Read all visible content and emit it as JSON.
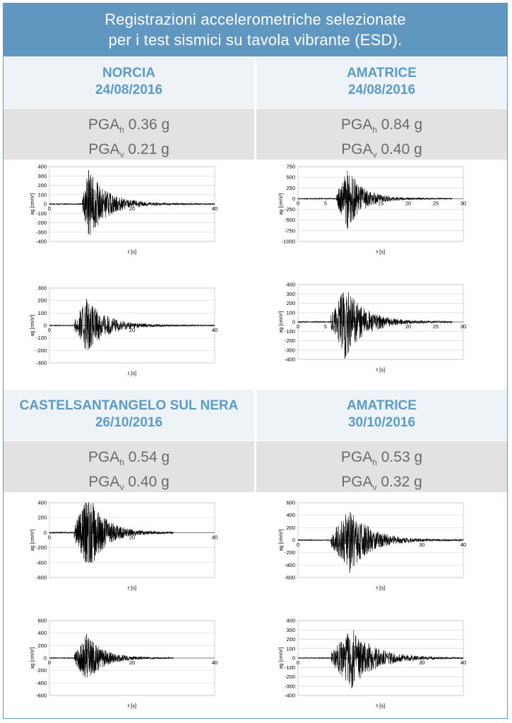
{
  "title": {
    "line1": "Registrazioni accelerometriche selezionate",
    "line2": "per i test sismici su tavola vibrante (ESD)."
  },
  "panels": [
    {
      "name": "NORCIA",
      "date": "24/08/2016",
      "pga_label": "PGA",
      "pga_h_sub": "h",
      "pga_v_sub": "v",
      "pga_h": "0.36 g",
      "pga_v": "0.21 g"
    },
    {
      "name": "AMATRICE",
      "date": "24/08/2016",
      "pga_label": "PGA",
      "pga_h_sub": "h",
      "pga_v_sub": "v",
      "pga_h": "0.84 g",
      "pga_v": "0.40 g"
    },
    {
      "name": "CASTELSANTANGELO SUL NERA",
      "date": "26/10/2016",
      "pga_label": "PGA",
      "pga_h_sub": "h",
      "pga_v_sub": "v",
      "pga_h": "0.54 g",
      "pga_v": "0.40 g"
    },
    {
      "name": "AMATRICE",
      "date": "30/10/2016",
      "pga_label": "PGA",
      "pga_h_sub": "h",
      "pga_v_sub": "v",
      "pga_h": "0.53 g",
      "pga_v": "0.32 g"
    }
  ],
  "colors": {
    "title_bg": "#5f97c0",
    "station": "#5a9cc8",
    "pga_bg": "#e2e2e2",
    "header_bg": "#eef3f8",
    "trace": "#000000",
    "grid": "#d9d9d9"
  },
  "chart_data": [
    {
      "type": "line",
      "xlabel": "t [s]",
      "ylabel": "ag [cm/s²]",
      "xlim": [
        0,
        40
      ],
      "ylim": [
        -400,
        400
      ],
      "xticks": [
        0,
        20,
        40
      ],
      "yticks": [
        -400,
        -300,
        -200,
        -100,
        0,
        100,
        200,
        300,
        400
      ],
      "grid": true,
      "zero_axis": true,
      "duration": 40,
      "onset": 8,
      "peak_t": 9.5,
      "peak_amp": 360,
      "decay": 0.22
    },
    {
      "type": "line",
      "xlabel": "t [s]",
      "ylabel": "ag [cm/s²]",
      "xlim": [
        0,
        30
      ],
      "ylim": [
        -1000,
        750
      ],
      "xticks": [
        0,
        5,
        10,
        15,
        20,
        25,
        30
      ],
      "yticks": [
        -1000,
        -750,
        -500,
        -250,
        0,
        250,
        500,
        750
      ],
      "grid": true,
      "zero_axis": true,
      "duration": 28,
      "onset": 7,
      "peak_t": 9,
      "peak_amp": 700,
      "decay": 0.35
    },
    {
      "type": "line",
      "xlabel": "t [s]",
      "ylabel": "ag [cm/s²]",
      "xlim": [
        0,
        40
      ],
      "ylim": [
        -300,
        300
      ],
      "xticks": [
        0,
        20,
        40
      ],
      "yticks": [
        -300,
        -200,
        -100,
        0,
        100,
        200,
        300
      ],
      "grid": true,
      "zero_axis": true,
      "duration": 40,
      "onset": 6,
      "peak_t": 9,
      "peak_amp": 210,
      "decay": 0.2
    },
    {
      "type": "line",
      "xlabel": "t [s]",
      "ylabel": "ag [cm/s²]",
      "xlim": [
        0,
        30
      ],
      "ylim": [
        -400,
        400
      ],
      "xticks": [
        0,
        5,
        10,
        15,
        20,
        25,
        30
      ],
      "yticks": [
        -400,
        -300,
        -200,
        -100,
        0,
        100,
        200,
        300,
        400
      ],
      "grid": true,
      "zero_axis": true,
      "duration": 28,
      "onset": 6,
      "peak_t": 8.5,
      "peak_amp": 390,
      "decay": 0.28
    },
    {
      "type": "line",
      "xlabel": "t [s]",
      "ylabel": "ag [cm/s²]",
      "xlim": [
        0,
        40
      ],
      "ylim": [
        -600,
        400
      ],
      "xticks": [
        0,
        20,
        40
      ],
      "yticks": [
        -600,
        -400,
        -200,
        0,
        200,
        400
      ],
      "grid": true,
      "zero_axis": true,
      "duration": 30,
      "onset": 6,
      "peak_t": 9.5,
      "peak_amp": 520,
      "decay": 0.25
    },
    {
      "type": "line",
      "xlabel": "t [s]",
      "ylabel": "ag [cm/s²]",
      "xlim": [
        0,
        40
      ],
      "ylim": [
        -600,
        600
      ],
      "xticks": [
        0,
        10,
        20,
        30,
        40
      ],
      "yticks": [
        -600,
        -400,
        -200,
        0,
        200,
        400,
        600
      ],
      "grid": true,
      "zero_axis": true,
      "duration": 40,
      "onset": 8,
      "peak_t": 12.5,
      "peak_amp": 520,
      "decay": 0.2
    },
    {
      "type": "line",
      "xlabel": "t [s]",
      "ylabel": "ag [cm/s²]",
      "xlim": [
        0,
        40
      ],
      "ylim": [
        -600,
        600
      ],
      "xticks": [
        0,
        20,
        40
      ],
      "yticks": [
        -600,
        -400,
        -200,
        0,
        200,
        400,
        600
      ],
      "grid": true,
      "zero_axis": true,
      "duration": 30,
      "onset": 6,
      "peak_t": 9,
      "peak_amp": 380,
      "decay": 0.25
    },
    {
      "type": "line",
      "xlabel": "t [s]",
      "ylabel": "ag [cm/s²]",
      "xlim": [
        0,
        40
      ],
      "ylim": [
        -400,
        400
      ],
      "xticks": [
        0,
        10,
        20,
        30,
        40
      ],
      "yticks": [
        -400,
        -300,
        -200,
        -100,
        0,
        100,
        200,
        300,
        400
      ],
      "grid": true,
      "zero_axis": true,
      "duration": 40,
      "onset": 8,
      "peak_t": 13,
      "peak_amp": 320,
      "decay": 0.18
    }
  ]
}
